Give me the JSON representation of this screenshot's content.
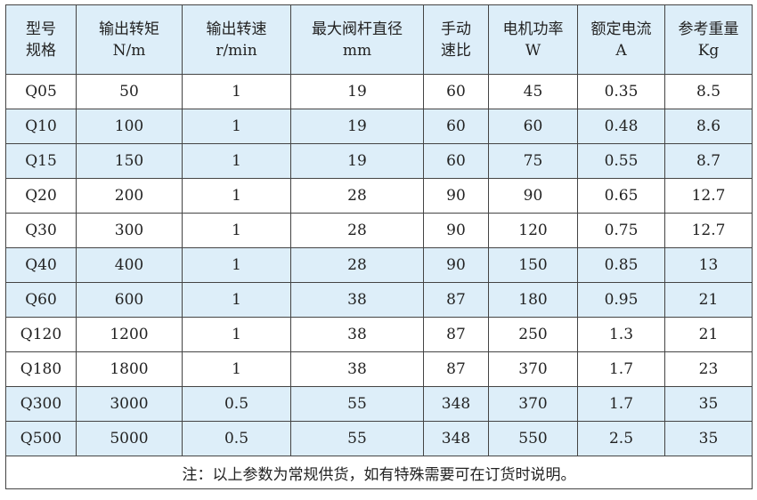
{
  "colors": {
    "header_bg": "#ddeef9",
    "alt_row_bg": "#ddeef9",
    "border": "#444444"
  },
  "headers": [
    {
      "line1": "型号",
      "line2": "规格"
    },
    {
      "line1": "输出转矩",
      "line2": "N/m"
    },
    {
      "line1": "输出转速",
      "line2": "r/min"
    },
    {
      "line1": "最大阀杆直径",
      "line2": "mm"
    },
    {
      "line1": "手动",
      "line2": "速比"
    },
    {
      "line1": "电机功率",
      "line2": "W"
    },
    {
      "line1": "额定电流",
      "line2": "A"
    },
    {
      "line1": "参考重量",
      "line2": "Kg"
    }
  ],
  "rows": [
    {
      "highlight": false,
      "cells": [
        "Q05",
        "50",
        "1",
        "19",
        "60",
        "45",
        "0.35",
        "8.5"
      ]
    },
    {
      "highlight": true,
      "cells": [
        "Q10",
        "100",
        "1",
        "19",
        "60",
        "60",
        "0.48",
        "8.6"
      ]
    },
    {
      "highlight": true,
      "cells": [
        "Q15",
        "150",
        "1",
        "19",
        "60",
        "75",
        "0.55",
        "8.7"
      ]
    },
    {
      "highlight": false,
      "cells": [
        "Q20",
        "200",
        "1",
        "28",
        "90",
        "90",
        "0.65",
        "12.7"
      ]
    },
    {
      "highlight": false,
      "cells": [
        "Q30",
        "300",
        "1",
        "28",
        "90",
        "120",
        "0.75",
        "12.7"
      ]
    },
    {
      "highlight": true,
      "cells": [
        "Q40",
        "400",
        "1",
        "28",
        "90",
        "150",
        "0.85",
        "13"
      ]
    },
    {
      "highlight": true,
      "cells": [
        "Q60",
        "600",
        "1",
        "38",
        "87",
        "180",
        "0.95",
        "21"
      ]
    },
    {
      "highlight": false,
      "cells": [
        "Q120",
        "1200",
        "1",
        "38",
        "87",
        "250",
        "1.3",
        "21"
      ]
    },
    {
      "highlight": false,
      "cells": [
        "Q180",
        "1800",
        "1",
        "38",
        "87",
        "370",
        "1.7",
        "23"
      ]
    },
    {
      "highlight": true,
      "cells": [
        "Q300",
        "3000",
        "0.5",
        "55",
        "348",
        "370",
        "1.7",
        "35"
      ]
    },
    {
      "highlight": true,
      "cells": [
        "Q500",
        "5000",
        "0.5",
        "55",
        "348",
        "550",
        "2.5",
        "35"
      ]
    }
  ],
  "note": "注：以上参数为常规供货，如有特殊需要可在订货时说明。"
}
